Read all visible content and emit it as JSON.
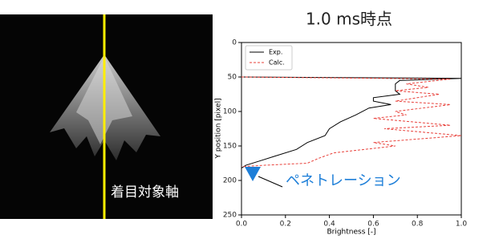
{
  "image": {
    "label": "着目対象軸"
  },
  "chart_data": {
    "type": "line",
    "title": "1.0 ms時点",
    "x_label": "Brightness [-]",
    "y_label": "Y position [pixel]",
    "xlim": [
      0,
      1
    ],
    "ylim": [
      250,
      0
    ],
    "y_inverted": true,
    "xticks": [
      {
        "value": 0,
        "label": "0.0"
      },
      0.2,
      0.4,
      0.6,
      0.8,
      {
        "value": 1,
        "label": "1.0"
      }
    ],
    "yticks": [
      0,
      50,
      100,
      150,
      200,
      250
    ],
    "legend": "upper left",
    "series": [
      {
        "name": "Exp.",
        "color": "#000000",
        "dashed": false,
        "positions": [
          50,
          52,
          55,
          60,
          65,
          70,
          75,
          80,
          85,
          90,
          95,
          105,
          115,
          125,
          135,
          145,
          155,
          165,
          172,
          178,
          182
        ],
        "values": [
          0,
          1.0,
          0.72,
          0.7,
          0.7,
          0.7,
          0.72,
          0.6,
          0.6,
          0.68,
          0.58,
          0.52,
          0.45,
          0.4,
          0.38,
          0.3,
          0.25,
          0.15,
          0.08,
          0.02,
          0
        ]
      },
      {
        "name": "Calc.",
        "color": "#e8403a",
        "dashed": true,
        "positions": [
          50,
          53,
          60,
          65,
          70,
          75,
          85,
          90,
          100,
          105,
          110,
          120,
          125,
          135,
          145,
          150,
          160,
          168,
          175,
          178,
          180
        ],
        "values": [
          0,
          0.95,
          0.75,
          0.85,
          0.7,
          0.9,
          0.7,
          0.95,
          0.7,
          0.75,
          0.6,
          0.95,
          0.65,
          1.0,
          0.6,
          0.7,
          0.42,
          0.35,
          0.3,
          0.1,
          0
        ]
      }
    ],
    "annotation": "ペネトレーション"
  }
}
